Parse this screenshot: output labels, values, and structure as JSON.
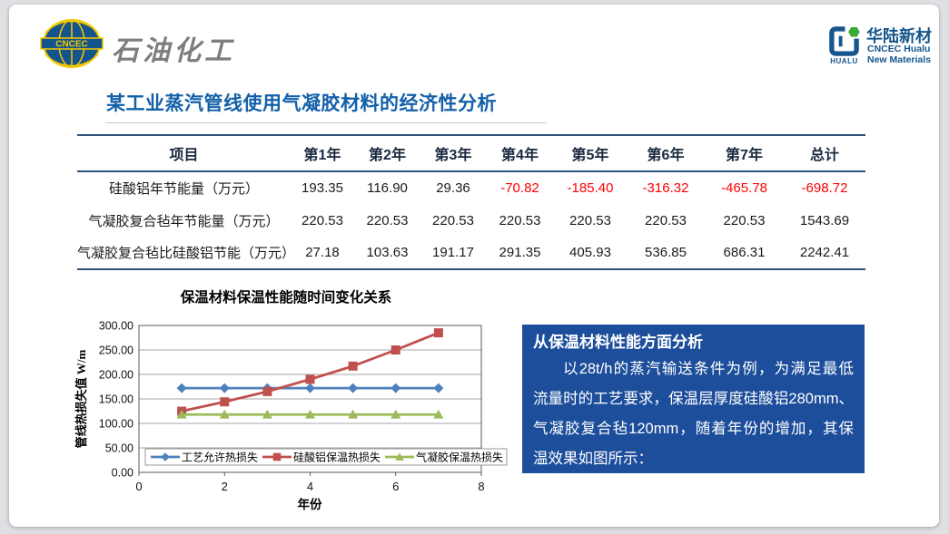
{
  "header": {
    "cncec_logo": {
      "label": "CNCEC",
      "brand": "石油化工"
    },
    "hualu_logo": {
      "icon_label": "HUALU",
      "name": "华陆新材",
      "sub1": "CNCEC Hualu",
      "sub2": "New Materials"
    }
  },
  "title": "某工业蒸汽管线使用气凝胶材料的经济性分析",
  "table": {
    "headers": [
      "项目",
      "第1年",
      "第2年",
      "第3年",
      "第4年",
      "第5年",
      "第6年",
      "第7年",
      "总计"
    ],
    "rows": [
      {
        "label": "硅酸铝年节能量（万元）",
        "values": [
          "193.35",
          "116.90",
          "29.36",
          "-70.82",
          "-185.40",
          "-316.32",
          "-465.78",
          "-698.72"
        ]
      },
      {
        "label": "气凝胶复合毡年节能量（万元）",
        "values": [
          "220.53",
          "220.53",
          "220.53",
          "220.53",
          "220.53",
          "220.53",
          "220.53",
          "1543.69"
        ]
      },
      {
        "label": "气凝胶复合毡比硅酸铝节能（万元）",
        "values": [
          "27.18",
          "103.63",
          "191.17",
          "291.35",
          "405.93",
          "536.85",
          "686.31",
          "2242.41"
        ]
      }
    ],
    "negative_color": "#fe0000"
  },
  "chart_data": {
    "type": "line",
    "title": "保温材料保温性能随时间变化关系",
    "xlabel": "年份",
    "ylabel": "管线热损失值 W/m",
    "xlim": [
      0,
      8
    ],
    "ylim": [
      0,
      300
    ],
    "x_ticks": [
      "0",
      "2",
      "4",
      "6",
      "8"
    ],
    "y_ticks": [
      "0.00",
      "50.00",
      "100.00",
      "150.00",
      "200.00",
      "250.00",
      "300.00"
    ],
    "x": [
      1,
      2,
      3,
      4,
      5,
      6,
      7
    ],
    "series": [
      {
        "name": "工艺允许热损失",
        "color": "#4f81bd",
        "marker": "diamond",
        "values": [
          172,
          172,
          172,
          172,
          172,
          172,
          172
        ]
      },
      {
        "name": "硅酸铝保温热损失",
        "color": "#c0504d",
        "marker": "square",
        "values": [
          125,
          144,
          165,
          190,
          217,
          250,
          285
        ]
      },
      {
        "name": "气凝胶保温热损失",
        "color": "#9bbb59",
        "marker": "triangle",
        "values": [
          118,
          118,
          118,
          118,
          118,
          118,
          118
        ]
      }
    ],
    "legend_position": "bottom-inside",
    "grid": true
  },
  "info_box": {
    "title": "从保温材料性能方面分析",
    "body_lines": [
      "以28t/h的蒸汽输送条件为例，为满足最低",
      "流量时的工艺要求，保温层厚度硅酸铝280mm、",
      "气凝胶复合毡120mm，随着年份的增加，其保",
      "温效果如图所示："
    ],
    "bg_color": "#1d4e9b"
  }
}
